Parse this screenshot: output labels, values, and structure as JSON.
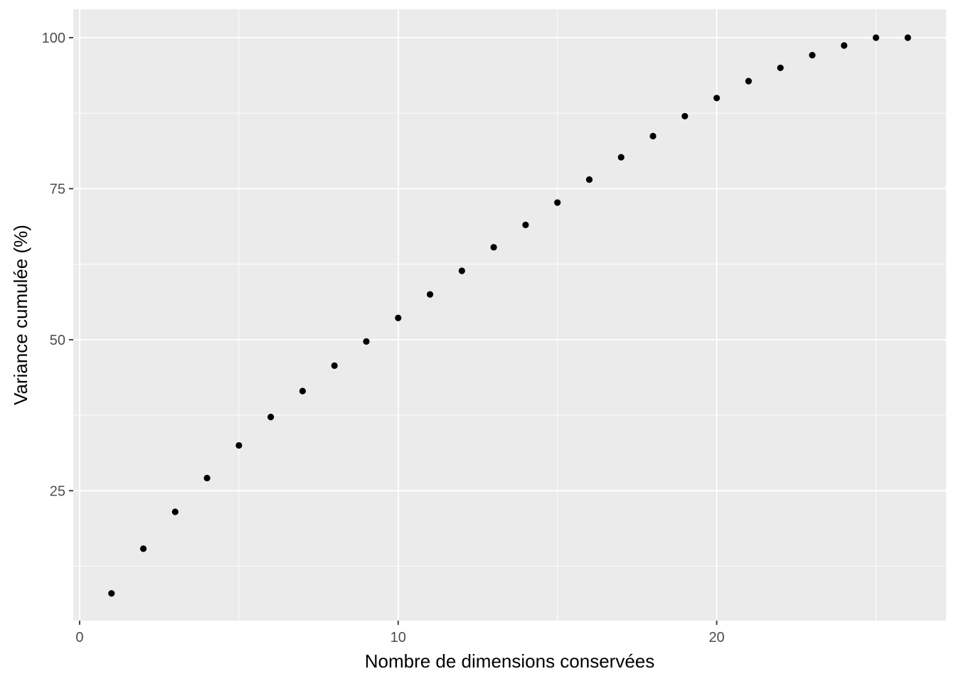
{
  "chart_data": {
    "type": "scatter",
    "title": "",
    "xlabel": "Nombre de dimensions conservées",
    "ylabel": "Variance cumulée (%)",
    "xlim": [
      -0.2,
      27.2
    ],
    "ylim": [
      3.5,
      104.7
    ],
    "x_ticks": [
      0,
      10,
      20
    ],
    "x_tick_labels": [
      "0",
      "10",
      "20"
    ],
    "y_ticks": [
      25,
      50,
      75,
      100
    ],
    "y_tick_labels": [
      "25",
      "50",
      "75",
      "100"
    ],
    "x_minor_ticks": [
      5,
      15,
      25
    ],
    "y_minor_ticks": [
      12.5,
      37.5,
      62.5,
      87.5
    ],
    "grid": true,
    "legend": "none",
    "colors": {
      "panel_background": "#ebebeb",
      "grid_line": "#ffffff",
      "point": "#000000",
      "tick_mark": "#333333"
    },
    "series": [
      {
        "x": [
          1,
          2,
          3,
          4,
          5,
          6,
          7,
          8,
          9,
          10,
          11,
          12,
          13,
          14,
          15,
          16,
          17,
          18,
          19,
          20,
          21,
          22,
          23,
          24,
          25,
          26
        ],
        "y": [
          8.0,
          15.4,
          21.5,
          27.1,
          32.5,
          37.2,
          41.5,
          45.7,
          49.7,
          53.6,
          57.5,
          61.4,
          65.3,
          69.0,
          72.7,
          76.5,
          80.2,
          83.7,
          87.0,
          90.0,
          92.8,
          95.0,
          97.1,
          98.7,
          100.0,
          100.0
        ]
      }
    ]
  }
}
